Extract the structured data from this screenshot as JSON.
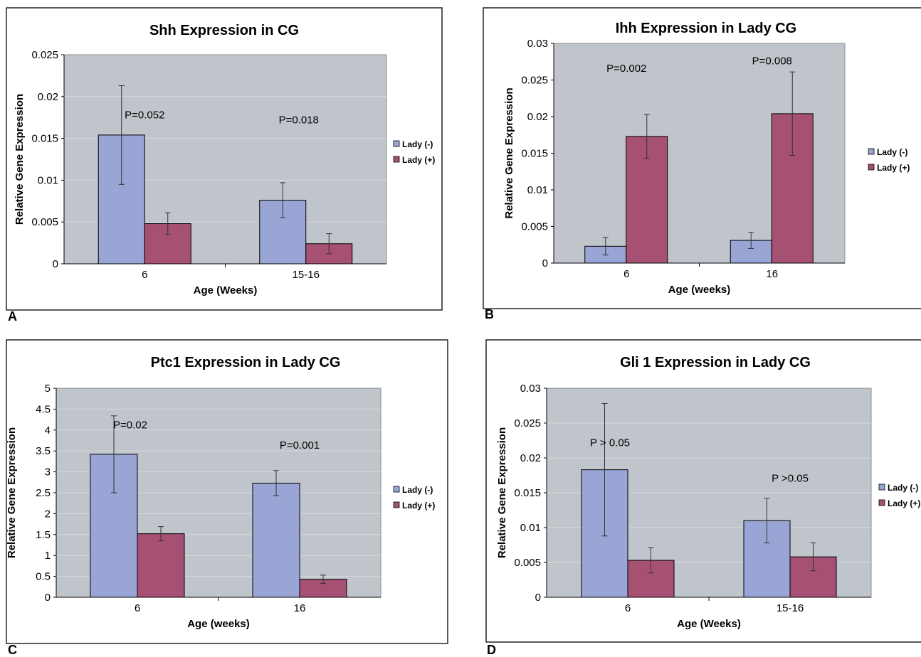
{
  "colors": {
    "plot_bg": "#c0c4cb",
    "gridline": "#d6d9de",
    "lady_minus": "#99a5d4",
    "lady_plus": "#a65073",
    "frame": "#000000"
  },
  "chart_data": [
    {
      "panel_label": "A",
      "type": "bar",
      "title": "Shh Expression in CG",
      "xlabel": "Age (Weeks)",
      "ylabel": "Relative Gene Expression",
      "categories": [
        "6",
        "15-16"
      ],
      "ylim": [
        0,
        0.025
      ],
      "yticks": [
        0,
        0.005,
        0.01,
        0.015,
        0.02,
        0.025
      ],
      "ytick_labels": [
        "0",
        "0.005",
        "0.01",
        "0.015",
        "0.02",
        "0.025"
      ],
      "grid": true,
      "legend": "right",
      "series": [
        {
          "name": "Lady (-)",
          "values": [
            0.0154,
            0.0076
          ],
          "errors": [
            0.0059,
            0.0021
          ]
        },
        {
          "name": "Lady (+)",
          "values": [
            0.0048,
            0.0024
          ],
          "errors": [
            0.0013,
            0.0012
          ]
        }
      ],
      "annotations": [
        {
          "text": "P=0.052",
          "category": 0,
          "y": 0.0178
        },
        {
          "text": "P=0.018",
          "category": 1,
          "y": 0.0172
        }
      ]
    },
    {
      "panel_label": "B",
      "type": "bar",
      "title": "Ihh Expression in Lady CG",
      "xlabel": "Age (weeks)",
      "ylabel": "Relative Gene Expression",
      "categories": [
        "6",
        "16"
      ],
      "ylim": [
        0,
        0.03
      ],
      "yticks": [
        0,
        0.005,
        0.01,
        0.015,
        0.02,
        0.025,
        0.03
      ],
      "ytick_labels": [
        "0",
        "0.005",
        "0.01",
        "0.015",
        "0.02",
        "0.025",
        "0.03"
      ],
      "grid": false,
      "legend": "right",
      "series": [
        {
          "name": "Lady (-)",
          "values": [
            0.0023,
            0.0031
          ],
          "errors": [
            0.0012,
            0.0011
          ]
        },
        {
          "name": "Lady (+)",
          "values": [
            0.0173,
            0.0204
          ],
          "errors": [
            0.003,
            0.0057
          ]
        }
      ],
      "annotations": [
        {
          "text": "P=0.002",
          "category": 0,
          "y": 0.0266
        },
        {
          "text": "P=0.008",
          "category": 1,
          "y": 0.0276
        }
      ]
    },
    {
      "panel_label": "C",
      "type": "bar",
      "title": "Ptc1 Expression in Lady CG",
      "xlabel": "Age (weeks)",
      "ylabel": "Relative Gene Expression",
      "categories": [
        "6",
        "16"
      ],
      "ylim": [
        0,
        5
      ],
      "yticks": [
        0,
        0.5,
        1,
        1.5,
        2,
        2.5,
        3,
        3.5,
        4,
        4.5,
        5
      ],
      "ytick_labels": [
        "0",
        "0.5",
        "1",
        "1.5",
        "2",
        "2.5",
        "3",
        "3.5",
        "4",
        "4.5",
        "5"
      ],
      "grid": true,
      "legend": "right",
      "series": [
        {
          "name": "Lady (-)",
          "values": [
            3.42,
            2.73
          ],
          "errors": [
            0.92,
            0.3
          ]
        },
        {
          "name": "Lady (+)",
          "values": [
            1.52,
            0.43
          ],
          "errors": [
            0.17,
            0.1
          ]
        }
      ],
      "annotations": [
        {
          "text": "P=0.02",
          "category": 0,
          "y": 4.12
        },
        {
          "text": "P=0.001",
          "category": 1,
          "y": 3.64
        }
      ]
    },
    {
      "panel_label": "D",
      "type": "bar",
      "title": "Gli 1  Expression in Lady CG",
      "xlabel": "Age (Weeks)",
      "ylabel": "Relative Gene Expression",
      "categories": [
        "6",
        "15-16"
      ],
      "ylim": [
        0,
        0.03
      ],
      "yticks": [
        0,
        0.005,
        0.01,
        0.015,
        0.02,
        0.025,
        0.03
      ],
      "ytick_labels": [
        "0",
        "0.005",
        "0.01",
        "0.015",
        "0.02",
        "0.025",
        "0.03"
      ],
      "grid": true,
      "legend": "right",
      "series": [
        {
          "name": "Lady (-)",
          "values": [
            0.0183,
            0.011
          ],
          "errors": [
            0.0095,
            0.0032
          ]
        },
        {
          "name": "Lady (+)",
          "values": [
            0.0053,
            0.0058
          ],
          "errors": [
            0.0018,
            0.002
          ]
        }
      ],
      "annotations": [
        {
          "text": "P > 0.05",
          "category": 0,
          "y": 0.0222
        },
        {
          "text": "P >0.05",
          "category": 1,
          "y": 0.0171
        }
      ]
    }
  ]
}
